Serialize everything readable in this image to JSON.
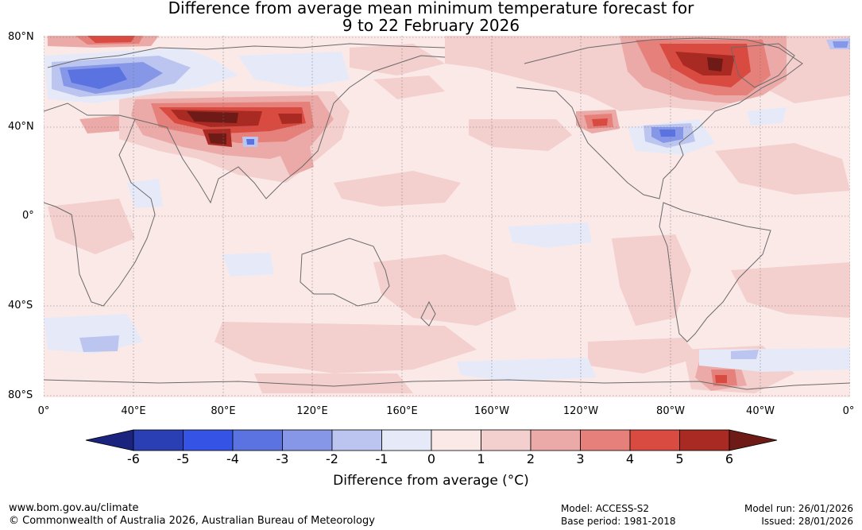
{
  "title": {
    "line1": "Difference from average mean minimum temperature forecast for",
    "line2": "9 to 22 February 2026"
  },
  "lat_labels": [
    "80°N",
    "40°N",
    "0°",
    "40°S",
    "80°S"
  ],
  "lon_labels": [
    "0°",
    "40°E",
    "80°E",
    "120°E",
    "160°E",
    "160°W",
    "120°W",
    "80°W",
    "40°W",
    "0°"
  ],
  "colorbar": {
    "ticks": [
      "-6",
      "-5",
      "-4",
      "-3",
      "-2",
      "-1",
      "0",
      "1",
      "2",
      "3",
      "4",
      "5",
      "6"
    ],
    "colors": [
      "#1a237e",
      "#2a3fb4",
      "#3553e4",
      "#5a73e0",
      "#8597e6",
      "#bcc5f0",
      "#e6eaf8",
      "#fbe9e8",
      "#f3cfcd",
      "#ebaaa7",
      "#e5807a",
      "#d94a41",
      "#a82a23",
      "#6e1a16"
    ],
    "label": "Difference from average (°C)"
  },
  "palette": {
    "neutral_warm": "#fbe9e8",
    "warm1": "#f3cfcd",
    "warm2": "#ebaaa7",
    "warm3": "#e5807a",
    "warm4": "#d94a41",
    "warm5": "#a82a23",
    "warm6": "#6e1a16",
    "cool1": "#e6eaf8",
    "cool2": "#bcc5f0",
    "cool3": "#8597e6",
    "cool4": "#5a73e0",
    "cool5": "#3553e4",
    "coast": "#6a6a6a"
  },
  "footer": {
    "url": "www.bom.gov.au/climate",
    "copyright": "© Commonwealth of Australia 2026, Australian Bureau of Meteorology",
    "model": "Model: ACCESS-S2",
    "base_period": "Base period: 1981-2018",
    "model_run": "Model run: 26/01/2026",
    "issued": "Issued: 28/01/2026"
  }
}
